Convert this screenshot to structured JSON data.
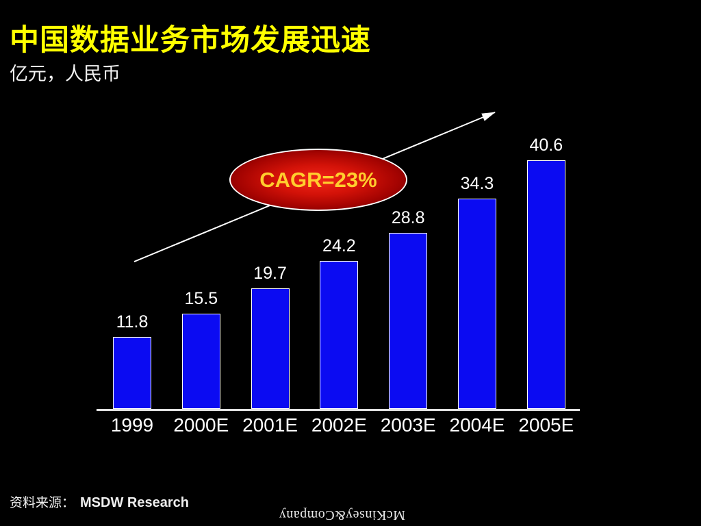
{
  "slide": {
    "title": "中国数据业务市场发展迅速",
    "subtitle": "亿元，人民币",
    "source": {
      "label": "资料来源：",
      "value": "MSDW Research"
    },
    "logo_text": "McKinsey&Company"
  },
  "annotation_ellipse": {
    "label": "CAGR=23%",
    "fill_center_color": "#f2261a",
    "fill_edge_color": "#560000",
    "border_color": "#ffffff",
    "text_color": "#ffce2e"
  },
  "chart_data": {
    "type": "bar",
    "title": "中国数据业务市场发展迅速",
    "unit_label": "亿元，人民币",
    "categories": [
      "1999",
      "2000E",
      "2001E",
      "2002E",
      "2003E",
      "2004E",
      "2005E"
    ],
    "values": [
      11.8,
      15.5,
      19.7,
      24.2,
      28.8,
      34.3,
      40.6
    ],
    "value_labels": [
      "11.8",
      "15.5",
      "19.7",
      "24.2",
      "28.8",
      "34.3",
      "40.6"
    ],
    "annotation": "CAGR=23%",
    "ylim": [
      0,
      45
    ],
    "grid": false,
    "legend": false,
    "bar_color": "#0b0bf2",
    "bar_border_color": "#ffffff",
    "axis_color": "#e3e3e3",
    "label_color": "#ffffff",
    "background_color": "#000000",
    "title_color": "#ffff00"
  }
}
